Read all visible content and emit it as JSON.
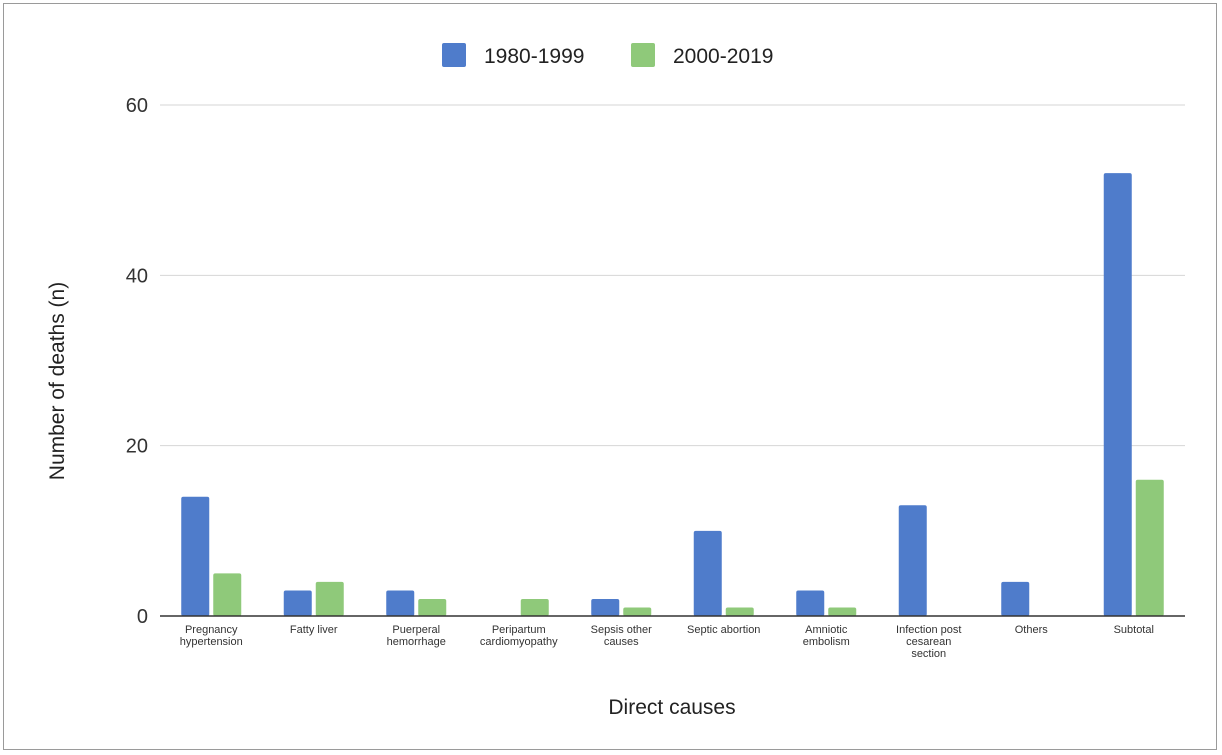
{
  "chart_data": {
    "type": "bar",
    "title": "",
    "xlabel": "Direct causes",
    "ylabel": "Number of deaths (n)",
    "ylim": [
      0,
      60
    ],
    "yticks": [
      0,
      20,
      40,
      60
    ],
    "grid": true,
    "legend_position": "top-center",
    "categories": [
      [
        "Pregnancy",
        "hypertension"
      ],
      [
        "Fatty liver"
      ],
      [
        "Puerperal",
        "hemorrhage"
      ],
      [
        "Peripartum",
        "cardiomyopathy"
      ],
      [
        "Sepsis other",
        "causes"
      ],
      [
        "Septic abortion"
      ],
      [
        "Amniotic",
        "embolism"
      ],
      [
        "Infection post",
        "cesarean",
        "section"
      ],
      [
        "Others"
      ],
      [
        "Subtotal"
      ]
    ],
    "series": [
      {
        "name": "1980-1999",
        "color": "#4f7ccb",
        "values": [
          14,
          3,
          3,
          0,
          2,
          10,
          3,
          13,
          4,
          52
        ]
      },
      {
        "name": "2000-2019",
        "color": "#8fc97a",
        "values": [
          5,
          4,
          2,
          2,
          1,
          1,
          1,
          0,
          0,
          16
        ]
      }
    ]
  }
}
